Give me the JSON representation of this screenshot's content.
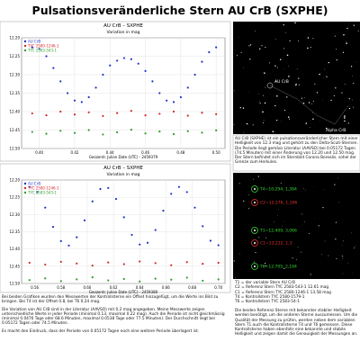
{
  "title": "Pulsationsveränderliche Stern AU CrB (SXPHE)",
  "chart_data": [
    {
      "type": "scatter",
      "title": "AU CrB – SXPHE",
      "subtitle": "Variation in mag",
      "x_label": "Geozentr. Julian Date (UTC) - 2459379",
      "xlim": [
        0.39,
        0.505
      ],
      "ylim": [
        12.2,
        12.5
      ],
      "y_inverted": true,
      "grid": true,
      "legend": "upper left",
      "xticks": [
        {
          "value": 0.4,
          "label": "0.40"
        },
        0.42,
        0.44,
        0.46,
        0.48,
        {
          "value": 0.5,
          "label": "0.50"
        }
      ],
      "yticks": [
        {
          "value": 12.2,
          "label": "12.20"
        },
        12.25,
        {
          "value": 12.3,
          "label": "12.30"
        },
        12.35,
        {
          "value": 12.4,
          "label": "12.40"
        },
        12.45,
        {
          "value": 12.5,
          "label": "12.50"
        }
      ],
      "series": [
        {
          "name": "AU CrB",
          "color": "#2233cc",
          "x": [
            0.396,
            0.4,
            0.404,
            0.408,
            0.412,
            0.416,
            0.42,
            0.424,
            0.428,
            0.432,
            0.436,
            0.44,
            0.444,
            0.448,
            0.452,
            0.456,
            0.46,
            0.464,
            0.468,
            0.472,
            0.476,
            0.48,
            0.484,
            0.488,
            0.492,
            0.496,
            0.5
          ],
          "values": [
            12.226,
            12.23,
            12.25,
            12.282,
            12.318,
            12.35,
            12.37,
            12.374,
            12.361,
            12.335,
            12.3,
            12.275,
            12.262,
            12.255,
            12.258,
            12.27,
            12.29,
            12.318,
            12.35,
            12.37,
            12.374,
            12.361,
            12.335,
            12.3,
            12.265,
            12.239,
            12.226
          ]
        },
        {
          "name": "TYC 2580-1246-1",
          "color": "#d62728",
          "x": [
            0.396,
            0.404,
            0.412,
            0.42,
            0.428,
            0.436,
            0.444,
            0.452,
            0.46,
            0.468,
            0.476,
            0.484,
            0.492,
            0.5
          ],
          "values": [
            12.405,
            12.41,
            12.4,
            12.408,
            12.402,
            12.412,
            12.404,
            12.398,
            12.41,
            12.406,
            12.4,
            12.411,
            12.403,
            12.407
          ]
        },
        {
          "name": "TYC 2583-543-1",
          "color": "#2ca02c",
          "x": [
            0.396,
            0.404,
            0.412,
            0.42,
            0.428,
            0.436,
            0.444,
            0.452,
            0.46,
            0.468,
            0.476,
            0.484,
            0.492,
            0.5
          ],
          "values": [
            12.455,
            12.46,
            12.452,
            12.458,
            12.45,
            12.462,
            12.456,
            12.449,
            12.459,
            12.454,
            12.461,
            12.453,
            12.457,
            12.451
          ]
        }
      ]
    },
    {
      "type": "scatter",
      "title": "AU CrB – SXPHE",
      "subtitle": "Variation in mag",
      "x_label": "Geozentr. Julian Date (UTC) - 2459380",
      "xlim": [
        0.55,
        0.705
      ],
      "ylim": [
        12.2,
        12.5
      ],
      "y_inverted": true,
      "grid": true,
      "legend": "upper left",
      "xticks": [
        0.56,
        0.58,
        {
          "value": 0.6,
          "label": "0.60"
        },
        0.62,
        0.64,
        0.66,
        0.68,
        {
          "value": 0.7,
          "label": "0.70"
        }
      ],
      "yticks": [
        {
          "value": 12.2,
          "label": "12.20"
        },
        12.25,
        {
          "value": 12.3,
          "label": "12.30"
        },
        12.35,
        {
          "value": 12.4,
          "label": "12.40"
        },
        12.45,
        {
          "value": 12.5,
          "label": "12.50"
        }
      ],
      "series": [
        {
          "name": "AU CrB",
          "color": "#2233cc",
          "x": [
            0.556,
            0.562,
            0.568,
            0.574,
            0.58,
            0.586,
            0.592,
            0.598,
            0.604,
            0.61,
            0.616,
            0.622,
            0.628,
            0.634,
            0.64,
            0.646,
            0.652,
            0.658,
            0.664,
            0.67,
            0.676,
            0.682,
            0.688,
            0.694,
            0.7
          ],
          "values": [
            12.22,
            12.235,
            12.28,
            12.336,
            12.377,
            12.39,
            12.366,
            12.317,
            12.262,
            12.226,
            12.223,
            12.255,
            12.308,
            12.359,
            12.387,
            12.382,
            12.345,
            12.289,
            12.24,
            12.22,
            12.235,
            12.28,
            12.334,
            12.376,
            12.389
          ]
        },
        {
          "name": "TYC 2580-1246-1",
          "color": "#d62728",
          "x": [
            0.556,
            0.568,
            0.58,
            0.592,
            0.604,
            0.616,
            0.628,
            0.64,
            0.652,
            0.664,
            0.676,
            0.688,
            0.7
          ],
          "values": [
            12.44,
            12.445,
            12.437,
            12.442,
            12.448,
            12.439,
            12.444,
            12.436,
            12.441,
            12.447,
            12.438,
            12.443,
            12.44
          ]
        },
        {
          "name": "TYC 2583-543-1",
          "color": "#2ca02c",
          "x": [
            0.556,
            0.568,
            0.58,
            0.592,
            0.604,
            0.616,
            0.628,
            0.64,
            0.652,
            0.664,
            0.676,
            0.688,
            0.7
          ],
          "values": [
            12.49,
            12.485,
            12.493,
            12.488,
            12.482,
            12.491,
            12.487,
            12.494,
            12.486,
            12.489,
            12.483,
            12.492,
            12.488
          ]
        }
      ]
    }
  ],
  "left_text": [
    "Bei beiden Grafiken wurden den Messwerten der Kontrollsterne ein Offset hinzugefügt, um die Werte ins Bild zu bringen. Bei T4 ist der Offset 0.8, bei T6 0.24 mag.",
    "Die Variation von AU CrB sind in der Literatur (AAVSO) mit 0.2 mag angegeben. Meine Messwerte zeigen unterschiedliche Werte in jeder Periode (minimal 0.13, maximal 0.22 mag). Auch die Periode ist nicht gleichmässig (minimal 0.0476 Tage oder 68.6 Minuten, maximal 0.0538 Tage oder 77.5 Minuten). Der Durchschnitt liegt bei 0.05172 Tagen oder 74.5 Minuten.",
    "Es macht den Eindruck, dass der Periode von 0.05172 Tagen noch eine weitere Periode überlagert ist."
  ],
  "star_map_labels": [
    "AU CrB",
    "Alpha CrB"
  ],
  "star_description": "AU CrB (SXPHE) ist ein pulsationsveränderlicher Stern mit einer Helligkeit von 12.3 mag und gehört zu den Delta-Scuti-Sternen. Die Periode liegt gemäss Literatur (AAVSO) bei 0.05172 Tagen (74.5 Minuten) mit einer Änderung von 12.20 und 12.50 mag. Der Stern befindet sich im Sternbild Corona Borealis, sohel der Grenze zum Herkules.",
  "field_labels": [
    {
      "text": "T4=10,294, 1,384",
      "color": "#33dd33"
    },
    {
      "text": "C2=12,576, 1,166",
      "color": "#ee3333"
    },
    {
      "text": "T1=12,409, 3,066",
      "color": "#33dd33"
    },
    {
      "text": "C1=13,222, 1,3",
      "color": "#ee3333"
    },
    {
      "text": "T6=12,705, 2,164",
      "color": "#33dd33"
    }
  ],
  "star_list": [
    "T1 = der variable Stern AU CrB",
    "C2 = Referenz Stern TYC 2583-543-1 12.61 mag",
    "C1 = Referenz Stern TYC 2580-1246-1 13.58 mag",
    "T4 = Kontrollstern TYC 2580-1579-1",
    "T6 = Kontrollstern TYC 2583-54-1"
  ],
  "reference_text": "Die beiden Referenz Sterne mit bekannter stabiler Helligkeit werden benötigt, um die anderen Sterne auszumessen. Um die Qualität der Messung zu prüfen, werden neben dem variablen Stern T1 auch die Kontrollsterne T4 und T6 gemessen. Diese Kontrollsterne haben ebenfalls eine bekannte und stabile Helligkeit und zeigen damit die Genauigkeit der Messungen an."
}
